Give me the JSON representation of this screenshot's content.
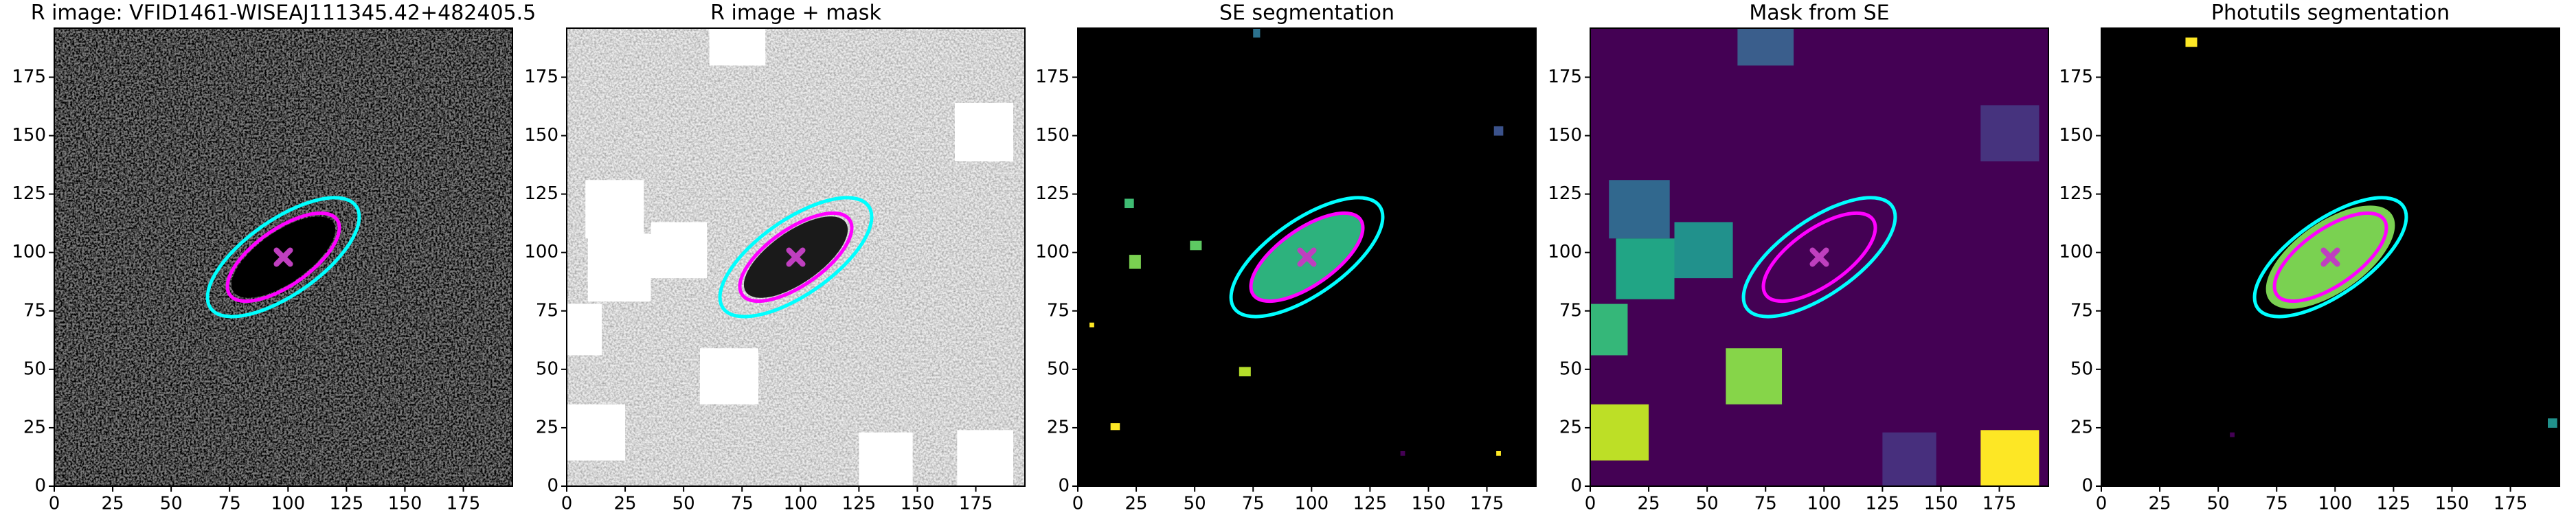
{
  "chart_data": [
    {
      "type": "image",
      "title": "R image: VFID1461-WISEAJ111345.42+482405.5",
      "background": "#7a7a7a",
      "noise": "dark",
      "xlim": [
        0,
        196
      ],
      "ylim": [
        0,
        196
      ],
      "xticks": [
        0,
        25,
        50,
        75,
        100,
        125,
        150,
        175
      ],
      "yticks": [
        0,
        25,
        50,
        75,
        100,
        125,
        150,
        175
      ],
      "ellipses": [
        {
          "center": [
            98,
            98
          ],
          "a": 26,
          "b": 11,
          "angle": 35,
          "fill": "#000000"
        },
        {
          "center": [
            98,
            98
          ],
          "a": 38,
          "b": 16,
          "angle": 35,
          "color": "#00ffff"
        },
        {
          "center": [
            98,
            98
          ],
          "a": 28,
          "b": 12,
          "angle": 35,
          "color": "#ff00ff"
        }
      ],
      "marker": {
        "x": 98,
        "y": 98,
        "color": "#bf3fbf"
      },
      "regions": []
    },
    {
      "type": "image",
      "title": "R image + mask",
      "background": "#ececec",
      "noise": "light",
      "xlim": [
        0,
        196
      ],
      "ylim": [
        0,
        196
      ],
      "xticks": [
        0,
        25,
        50,
        75,
        100,
        125,
        150,
        175
      ],
      "yticks": [
        0,
        25,
        50,
        75,
        100,
        125,
        150,
        175
      ],
      "ellipses": [
        {
          "center": [
            98,
            98
          ],
          "a": 26,
          "b": 11,
          "angle": 35,
          "fill": "#1a1a1a"
        },
        {
          "center": [
            98,
            98
          ],
          "a": 38,
          "b": 16,
          "angle": 35,
          "color": "#00ffff"
        },
        {
          "center": [
            98,
            98
          ],
          "a": 28,
          "b": 12,
          "angle": 35,
          "color": "#ff00ff"
        }
      ],
      "marker": {
        "x": 98,
        "y": 98,
        "color": "#bf3fbf"
      },
      "regions": [
        {
          "x": [
            61,
            85
          ],
          "y": [
            180,
            196
          ],
          "color": "#ffffff"
        },
        {
          "x": [
            166,
            191
          ],
          "y": [
            139,
            164
          ],
          "color": "#ffffff"
        },
        {
          "x": [
            8,
            33
          ],
          "y": [
            106,
            131
          ],
          "color": "#ffffff"
        },
        {
          "x": [
            9,
            36
          ],
          "y": [
            79,
            108
          ],
          "color": "#ffffff"
        },
        {
          "x": [
            36,
            60
          ],
          "y": [
            89,
            113
          ],
          "color": "#ffffff"
        },
        {
          "x": [
            0,
            15
          ],
          "y": [
            56,
            78
          ],
          "color": "#ffffff"
        },
        {
          "x": [
            57,
            82
          ],
          "y": [
            35,
            59
          ],
          "color": "#ffffff"
        },
        {
          "x": [
            0,
            25
          ],
          "y": [
            11,
            35
          ],
          "color": "#ffffff"
        },
        {
          "x": [
            125,
            148
          ],
          "y": [
            0,
            23
          ],
          "color": "#ffffff"
        },
        {
          "x": [
            167,
            191
          ],
          "y": [
            0,
            24
          ],
          "color": "#ffffff"
        }
      ]
    },
    {
      "type": "image",
      "title": "SE segmentation",
      "background": "#000000",
      "xlim": [
        0,
        196
      ],
      "ylim": [
        0,
        196
      ],
      "xticks": [
        0,
        25,
        50,
        75,
        100,
        125,
        150,
        175
      ],
      "yticks": [
        0,
        25,
        50,
        75,
        100,
        125,
        150,
        175
      ],
      "ellipses": [
        {
          "center": [
            98,
            98
          ],
          "a": 28,
          "b": 12,
          "angle": 35,
          "fill": "#2db27d"
        },
        {
          "center": [
            98,
            98
          ],
          "a": 38,
          "b": 16,
          "angle": 35,
          "color": "#00ffff"
        },
        {
          "center": [
            98,
            98
          ],
          "a": 28,
          "b": 12,
          "angle": 35,
          "color": "#ff00ff"
        }
      ],
      "marker": {
        "x": 98,
        "y": 98,
        "color": "#bf3fbf"
      },
      "regions": [
        {
          "x": [
            75,
            78
          ],
          "y": [
            192,
            196
          ],
          "color": "#2c728e"
        },
        {
          "x": [
            178,
            182
          ],
          "y": [
            150,
            154
          ],
          "color": "#3b528b"
        },
        {
          "x": [
            20,
            24
          ],
          "y": [
            119,
            123
          ],
          "color": "#3fbc73"
        },
        {
          "x": [
            22,
            27
          ],
          "y": [
            93,
            99
          ],
          "color": "#7ad151"
        },
        {
          "x": [
            48,
            53
          ],
          "y": [
            101,
            105
          ],
          "color": "#5ec962"
        },
        {
          "x": [
            5,
            7
          ],
          "y": [
            68,
            70
          ],
          "color": "#fde725"
        },
        {
          "x": [
            69,
            74
          ],
          "y": [
            47,
            51
          ],
          "color": "#b5de2b"
        },
        {
          "x": [
            14,
            18
          ],
          "y": [
            24,
            27
          ],
          "color": "#fde725"
        },
        {
          "x": [
            138,
            140
          ],
          "y": [
            13,
            15
          ],
          "color": "#440154"
        },
        {
          "x": [
            179,
            181
          ],
          "y": [
            13,
            15
          ],
          "color": "#fde725"
        }
      ]
    },
    {
      "type": "image",
      "title": "Mask from SE",
      "background": "#440154",
      "xlim": [
        0,
        196
      ],
      "ylim": [
        0,
        196
      ],
      "xticks": [
        0,
        25,
        50,
        75,
        100,
        125,
        150,
        175
      ],
      "yticks": [
        0,
        25,
        50,
        75,
        100,
        125,
        150,
        175
      ],
      "ellipses": [
        {
          "center": [
            98,
            98
          ],
          "a": 38,
          "b": 16,
          "angle": 35,
          "color": "#00ffff"
        },
        {
          "center": [
            98,
            98
          ],
          "a": 28,
          "b": 12,
          "angle": 35,
          "color": "#ff00ff"
        }
      ],
      "marker": {
        "x": 98,
        "y": 98,
        "color": "#bf3fbf"
      },
      "regions": [
        {
          "x": [
            63,
            87
          ],
          "y": [
            180,
            196
          ],
          "color": "#3a5e8c"
        },
        {
          "x": [
            167,
            192
          ],
          "y": [
            139,
            163
          ],
          "color": "#46337e"
        },
        {
          "x": [
            8,
            34
          ],
          "y": [
            106,
            131
          ],
          "color": "#31688e"
        },
        {
          "x": [
            11,
            36
          ],
          "y": [
            80,
            106
          ],
          "color": "#21a585"
        },
        {
          "x": [
            36,
            61
          ],
          "y": [
            89,
            113
          ],
          "color": "#21918c"
        },
        {
          "x": [
            0,
            16
          ],
          "y": [
            56,
            78
          ],
          "color": "#35b779"
        },
        {
          "x": [
            58,
            82
          ],
          "y": [
            35,
            59
          ],
          "color": "#86d549"
        },
        {
          "x": [
            0,
            25
          ],
          "y": [
            11,
            35
          ],
          "color": "#bddf26"
        },
        {
          "x": [
            125,
            148
          ],
          "y": [
            0,
            23
          ],
          "color": "#472f7d"
        },
        {
          "x": [
            167,
            192
          ],
          "y": [
            0,
            24
          ],
          "color": "#fde725"
        }
      ]
    },
    {
      "type": "image",
      "title": "Photutils segmentation",
      "background": "#000000",
      "xlim": [
        0,
        196
      ],
      "ylim": [
        0,
        196
      ],
      "xticks": [
        0,
        25,
        50,
        75,
        100,
        125,
        150,
        175
      ],
      "yticks": [
        0,
        25,
        50,
        75,
        100,
        125,
        150,
        175
      ],
      "ellipses": [
        {
          "center": [
            98,
            98
          ],
          "a": 32,
          "b": 15,
          "angle": 35,
          "fill": "#7ad151"
        },
        {
          "center": [
            98,
            98
          ],
          "a": 38,
          "b": 16,
          "angle": 35,
          "color": "#00ffff"
        },
        {
          "center": [
            98,
            98
          ],
          "a": 28,
          "b": 12,
          "angle": 35,
          "color": "#ff00ff"
        }
      ],
      "marker": {
        "x": 98,
        "y": 98,
        "color": "#bf3fbf"
      },
      "regions": [
        {
          "x": [
            36,
            41
          ],
          "y": [
            188,
            192
          ],
          "color": "#fde725"
        },
        {
          "x": [
            55,
            57
          ],
          "y": [
            21,
            23
          ],
          "color": "#440154"
        },
        {
          "x": [
            191,
            195
          ],
          "y": [
            25,
            29
          ],
          "color": "#21918c"
        }
      ]
    }
  ]
}
